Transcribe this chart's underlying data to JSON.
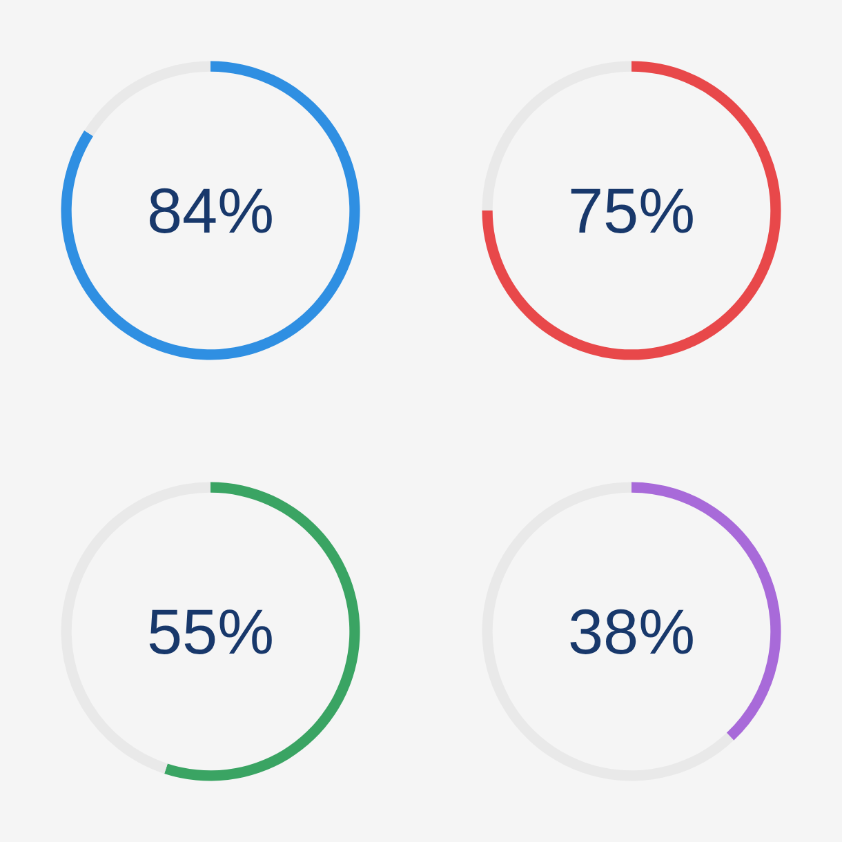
{
  "chart_data": [
    {
      "type": "donut",
      "title": "84%",
      "categories": [
        null,
        null
      ],
      "values": [
        84,
        16
      ],
      "colors": [
        "#2f8fe2",
        "#e9e9e9"
      ]
    },
    {
      "type": "donut",
      "title": "75%",
      "categories": [
        null,
        null
      ],
      "values": [
        75,
        25
      ],
      "colors": [
        "#e8484a",
        "#e9e9e9"
      ]
    },
    {
      "type": "donut",
      "title": "55%",
      "categories": [
        null,
        null
      ],
      "values": [
        55,
        45
      ],
      "colors": [
        "#3aa463",
        "#e9e9e9"
      ]
    },
    {
      "type": "donut",
      "title": "38%",
      "categories": [
        null,
        null
      ],
      "values": [
        38,
        62
      ],
      "colors": [
        "#a86ad9",
        "#e9e9e9"
      ]
    }
  ]
}
